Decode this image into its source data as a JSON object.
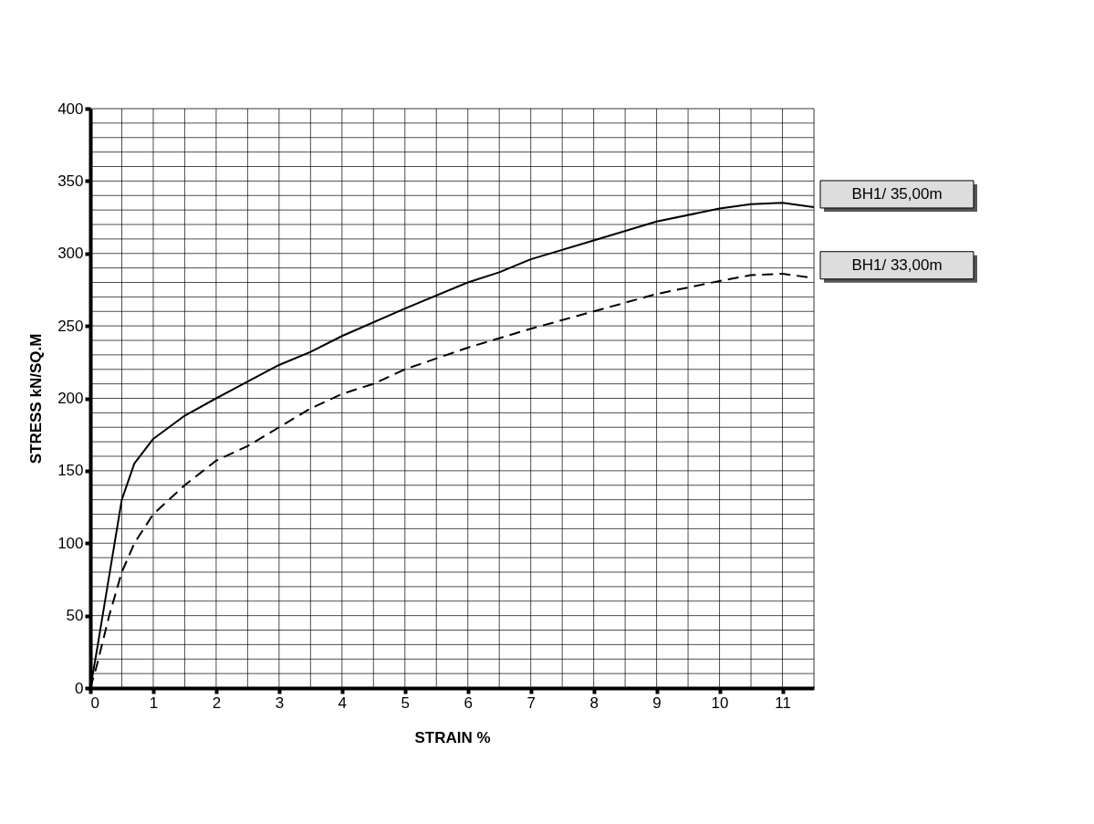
{
  "chart_data": {
    "type": "line",
    "xlabel": "STRAIN %",
    "ylabel": "STRESS kN/SQ.M",
    "xlim": [
      0,
      11.5
    ],
    "xticks": [
      0,
      1,
      2,
      3,
      4,
      5,
      6,
      7,
      8,
      9,
      10,
      11
    ],
    "ylim": [
      0,
      400
    ],
    "yticks": [
      0,
      50,
      100,
      150,
      200,
      250,
      300,
      350,
      400
    ],
    "grid": true,
    "series": [
      {
        "name": "BH1/ 35,00m",
        "color": "#000000",
        "line_style": "solid",
        "x": [
          0,
          0.1,
          0.5,
          0.7,
          1,
          1.5,
          2,
          3,
          3.5,
          4,
          5,
          6,
          6.5,
          7,
          8,
          9,
          10,
          10.5,
          11,
          11.5
        ],
        "values": [
          0,
          25,
          130,
          155,
          172,
          188,
          200,
          223,
          232,
          243,
          262,
          280,
          287,
          296,
          309,
          322,
          331,
          334,
          335,
          332
        ]
      },
      {
        "name": "BH1/ 33,00m",
        "color": "#000000",
        "line_style": "dashed",
        "x": [
          0,
          0.1,
          0.3,
          0.5,
          0.7,
          1,
          1.5,
          2,
          2.5,
          3,
          3.5,
          4,
          4.5,
          5,
          6,
          7,
          8,
          9,
          10,
          10.5,
          11,
          11.5
        ],
        "values": [
          0,
          15,
          50,
          80,
          100,
          120,
          140,
          157,
          167,
          180,
          193,
          203,
          210,
          220,
          235,
          248,
          260,
          272,
          281,
          285,
          286,
          283
        ]
      }
    ]
  }
}
